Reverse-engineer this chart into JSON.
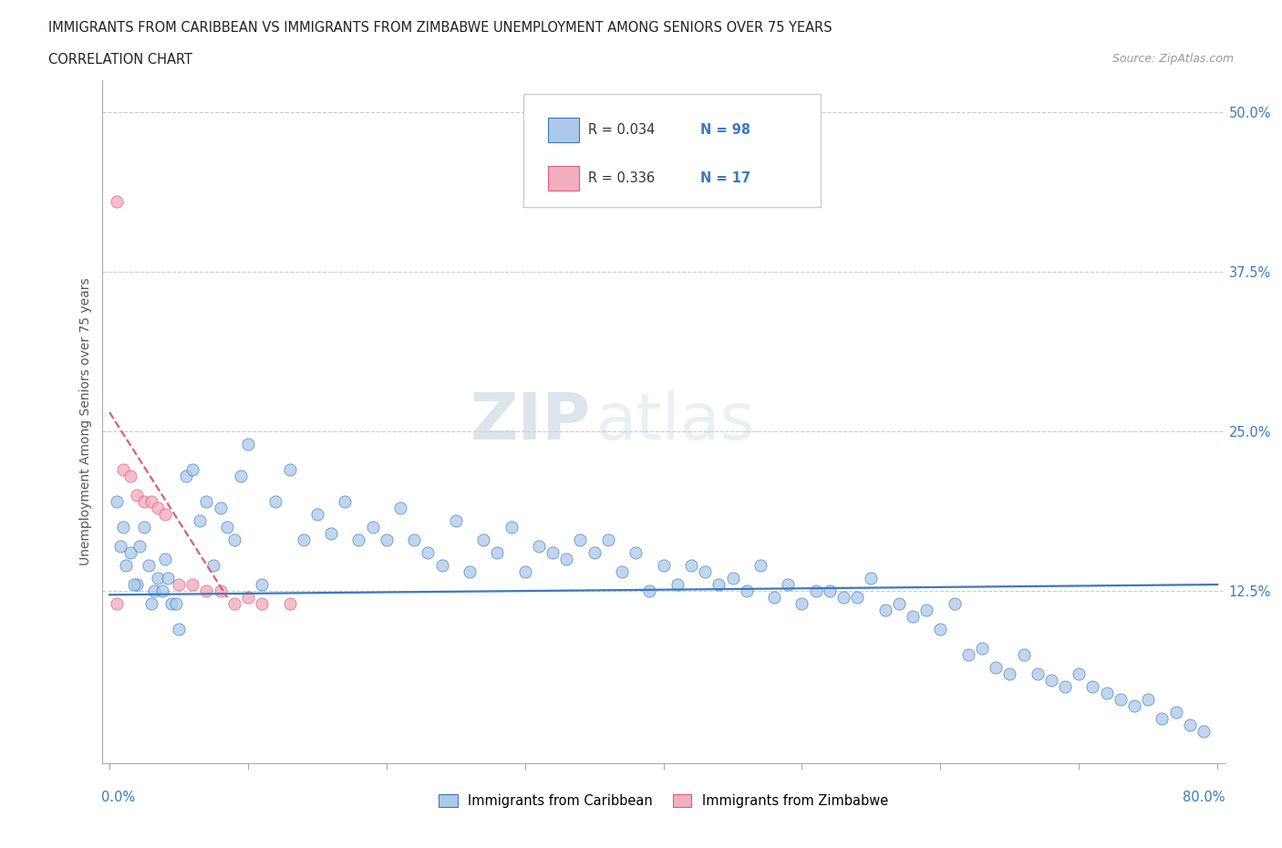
{
  "title_line1": "IMMIGRANTS FROM CARIBBEAN VS IMMIGRANTS FROM ZIMBABWE UNEMPLOYMENT AMONG SENIORS OVER 75 YEARS",
  "title_line2": "CORRELATION CHART",
  "source": "Source: ZipAtlas.com",
  "ylabel": "Unemployment Among Seniors over 75 years",
  "y_ticks": [
    0.0,
    0.125,
    0.25,
    0.375,
    0.5
  ],
  "y_tick_labels": [
    "",
    "12.5%",
    "25.0%",
    "37.5%",
    "50.0%"
  ],
  "x_lim": [
    -0.005,
    0.805
  ],
  "y_lim": [
    -0.01,
    0.525
  ],
  "r_caribbean": 0.034,
  "n_caribbean": 98,
  "r_zimbabwe": 0.336,
  "n_zimbabwe": 17,
  "color_caribbean": "#adc9e8",
  "color_zimbabwe": "#f2afc0",
  "color_caribbean_line": "#3a7abf",
  "color_zimbabwe_line": "#d9607a",
  "watermark_zip": "ZIP",
  "watermark_atlas": "atlas",
  "caribbean_scatter_x": [
    0.005,
    0.01,
    0.015,
    0.02,
    0.025,
    0.03,
    0.035,
    0.04,
    0.045,
    0.05,
    0.008,
    0.012,
    0.018,
    0.022,
    0.028,
    0.032,
    0.038,
    0.042,
    0.048,
    0.055,
    0.06,
    0.065,
    0.07,
    0.075,
    0.08,
    0.085,
    0.09,
    0.095,
    0.1,
    0.11,
    0.12,
    0.13,
    0.14,
    0.15,
    0.16,
    0.17,
    0.18,
    0.19,
    0.2,
    0.21,
    0.22,
    0.23,
    0.24,
    0.25,
    0.26,
    0.27,
    0.28,
    0.29,
    0.3,
    0.31,
    0.32,
    0.33,
    0.34,
    0.35,
    0.36,
    0.37,
    0.38,
    0.39,
    0.4,
    0.41,
    0.42,
    0.43,
    0.44,
    0.45,
    0.46,
    0.47,
    0.48,
    0.49,
    0.5,
    0.51,
    0.52,
    0.53,
    0.54,
    0.55,
    0.56,
    0.57,
    0.58,
    0.59,
    0.6,
    0.61,
    0.62,
    0.63,
    0.64,
    0.65,
    0.66,
    0.67,
    0.68,
    0.69,
    0.7,
    0.71,
    0.72,
    0.73,
    0.74,
    0.75,
    0.76,
    0.77,
    0.78,
    0.79
  ],
  "caribbean_scatter_y": [
    0.195,
    0.175,
    0.155,
    0.13,
    0.175,
    0.115,
    0.135,
    0.15,
    0.115,
    0.095,
    0.16,
    0.145,
    0.13,
    0.16,
    0.145,
    0.125,
    0.125,
    0.135,
    0.115,
    0.215,
    0.22,
    0.18,
    0.195,
    0.145,
    0.19,
    0.175,
    0.165,
    0.215,
    0.24,
    0.13,
    0.195,
    0.22,
    0.165,
    0.185,
    0.17,
    0.195,
    0.165,
    0.175,
    0.165,
    0.19,
    0.165,
    0.155,
    0.145,
    0.18,
    0.14,
    0.165,
    0.155,
    0.175,
    0.14,
    0.16,
    0.155,
    0.15,
    0.165,
    0.155,
    0.165,
    0.14,
    0.155,
    0.125,
    0.145,
    0.13,
    0.145,
    0.14,
    0.13,
    0.135,
    0.125,
    0.145,
    0.12,
    0.13,
    0.115,
    0.125,
    0.125,
    0.12,
    0.12,
    0.135,
    0.11,
    0.115,
    0.105,
    0.11,
    0.095,
    0.115,
    0.075,
    0.08,
    0.065,
    0.06,
    0.075,
    0.06,
    0.055,
    0.05,
    0.06,
    0.05,
    0.045,
    0.04,
    0.035,
    0.04,
    0.025,
    0.03,
    0.02,
    0.015
  ],
  "zimbabwe_scatter_x": [
    0.005,
    0.01,
    0.015,
    0.02,
    0.025,
    0.03,
    0.035,
    0.04,
    0.05,
    0.06,
    0.07,
    0.08,
    0.09,
    0.1,
    0.11,
    0.13,
    0.005
  ],
  "zimbabwe_scatter_y": [
    0.43,
    0.22,
    0.215,
    0.2,
    0.195,
    0.195,
    0.19,
    0.185,
    0.13,
    0.13,
    0.125,
    0.125,
    0.115,
    0.12,
    0.115,
    0.115,
    0.115
  ],
  "carib_trend_x0": 0.0,
  "carib_trend_x1": 0.8,
  "carib_trend_y0": 0.122,
  "carib_trend_y1": 0.13,
  "zim_trend_x0": 0.0,
  "zim_trend_x1": 0.085,
  "zim_trend_y0": 0.265,
  "zim_trend_y1": 0.12
}
